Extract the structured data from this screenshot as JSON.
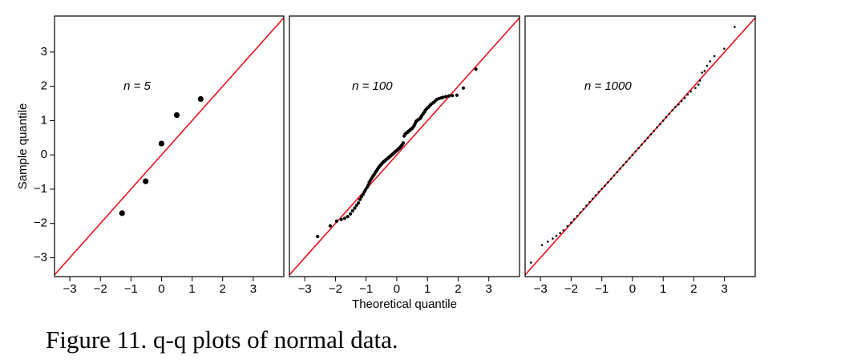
{
  "caption": "Figure 11. q-q plots of normal data.",
  "chart_data": [
    {
      "type": "scatter",
      "annotation": "n = 5",
      "ylabel": "Sample quantile",
      "xlim": [
        -3.5,
        4
      ],
      "ylim": [
        -3.55,
        4.05
      ],
      "xticks": [
        {
          "value": -3,
          "label": "−3"
        },
        {
          "value": -2,
          "label": "−2"
        },
        {
          "value": -1,
          "label": "−1"
        },
        0,
        1,
        2,
        3
      ],
      "yticks": [
        {
          "value": -3,
          "label": "−3"
        },
        {
          "value": -2,
          "label": "−2"
        },
        {
          "value": -1,
          "label": "−1"
        },
        0,
        1,
        2,
        3
      ],
      "color": "#000000",
      "reference_line": {
        "slope": 1,
        "intercept": 0,
        "color": "#e8141c"
      },
      "x": [
        -1.29,
        -0.52,
        0,
        0.5,
        1.28
      ],
      "y": [
        -1.7,
        -0.77,
        0.33,
        1.16,
        1.63
      ]
    },
    {
      "type": "scatter",
      "annotation": "n = 100",
      "xlabel": "Theoretical quantile",
      "xlim": [
        -3.5,
        4
      ],
      "ylim": [
        -3.55,
        4.05
      ],
      "xticks": [
        {
          "value": -3,
          "label": "−3"
        },
        {
          "value": -2,
          "label": "−2"
        },
        {
          "value": -1,
          "label": "−1"
        },
        0,
        1,
        2,
        3
      ],
      "color": "#000000",
      "reference_line": {
        "slope": 1,
        "intercept": 0,
        "color": "#e8141c"
      },
      "x": [
        -2.58,
        -2.17,
        -1.96,
        -1.81,
        -1.7,
        -1.6,
        -1.51,
        -1.44,
        -1.37,
        -1.31,
        -1.25,
        -1.2,
        -1.15,
        -1.1,
        -1.06,
        -1.02,
        -0.97,
        -0.93,
        -0.9,
        -0.86,
        -0.82,
        -0.79,
        -0.76,
        -0.72,
        -0.69,
        -0.66,
        -0.63,
        -0.6,
        -0.57,
        -0.54,
        -0.51,
        -0.48,
        -0.45,
        -0.43,
        -0.4,
        -0.37,
        -0.35,
        -0.32,
        -0.29,
        -0.27,
        -0.24,
        -0.21,
        -0.19,
        -0.16,
        -0.14,
        -0.11,
        -0.09,
        -0.06,
        -0.04,
        -0.01,
        0.01,
        0.04,
        0.06,
        0.09,
        0.11,
        0.14,
        0.16,
        0.19,
        0.21,
        0.24,
        0.27,
        0.29,
        0.32,
        0.35,
        0.37,
        0.4,
        0.43,
        0.45,
        0.48,
        0.51,
        0.54,
        0.57,
        0.6,
        0.63,
        0.66,
        0.69,
        0.72,
        0.76,
        0.79,
        0.82,
        0.86,
        0.9,
        0.93,
        0.97,
        1.02,
        1.06,
        1.1,
        1.15,
        1.2,
        1.25,
        1.31,
        1.37,
        1.44,
        1.51,
        1.6,
        1.7,
        1.81,
        1.96,
        2.17,
        2.58
      ],
      "y": [
        -2.38,
        -2.07,
        -1.93,
        -1.88,
        -1.85,
        -1.8,
        -1.72,
        -1.63,
        -1.55,
        -1.47,
        -1.4,
        -1.3,
        -1.22,
        -1.15,
        -1.08,
        -1.02,
        -0.95,
        -0.88,
        -0.8,
        -0.74,
        -0.69,
        -0.64,
        -0.6,
        -0.55,
        -0.5,
        -0.46,
        -0.42,
        -0.38,
        -0.34,
        -0.31,
        -0.28,
        -0.25,
        -0.22,
        -0.2,
        -0.18,
        -0.16,
        -0.14,
        -0.12,
        -0.1,
        -0.08,
        -0.06,
        -0.04,
        -0.02,
        0,
        0.02,
        0.04,
        0.06,
        0.08,
        0.1,
        0.12,
        0.14,
        0.16,
        0.18,
        0.2,
        0.22,
        0.25,
        0.28,
        0.31,
        0.35,
        0.55,
        0.6,
        0.62,
        0.64,
        0.66,
        0.68,
        0.7,
        0.72,
        0.74,
        0.76,
        0.78,
        0.82,
        0.86,
        0.92,
        0.98,
        1,
        1.02,
        1.04,
        1.06,
        1.1,
        1.15,
        1.2,
        1.25,
        1.3,
        1.34,
        1.38,
        1.42,
        1.46,
        1.5,
        1.53,
        1.57,
        1.62,
        1.64,
        1.66,
        1.68,
        1.7,
        1.72,
        1.73,
        1.74,
        1.95,
        2.5
      ]
    },
    {
      "type": "scatter",
      "annotation": "n = 1000",
      "xlim": [
        -3.5,
        4
      ],
      "ylim": [
        -3.55,
        4.05
      ],
      "xticks": [
        {
          "value": -3,
          "label": "−3"
        },
        {
          "value": -2,
          "label": "−2"
        },
        {
          "value": -1,
          "label": "−1"
        },
        0,
        1,
        2,
        3
      ],
      "color": "#000000",
      "reference_line": {
        "slope": 1,
        "intercept": 0,
        "color": "#e8141c"
      },
      "x": [
        -3.31,
        -2.95,
        -2.76,
        -2.6,
        -2.48,
        -2.36,
        -2.25,
        -2.12,
        -2.0,
        -1.9,
        -1.8,
        -1.7,
        -1.6,
        -1.5,
        -1.4,
        -1.3,
        -1.2,
        -1.1,
        -1.0,
        -0.9,
        -0.8,
        -0.7,
        -0.6,
        -0.5,
        -0.4,
        -0.3,
        -0.2,
        -0.1,
        0,
        0.1,
        0.2,
        0.3,
        0.4,
        0.5,
        0.6,
        0.7,
        0.8,
        0.9,
        1.0,
        1.1,
        1.2,
        1.3,
        1.4,
        1.5,
        1.6,
        1.7,
        1.8,
        1.9,
        2.05,
        2.15,
        2.2,
        2.27,
        2.35,
        2.43,
        2.53,
        2.67,
        2.99,
        3.33
      ],
      "y": [
        -3.14,
        -2.63,
        -2.53,
        -2.44,
        -2.36,
        -2.28,
        -2.2,
        -2.08,
        -1.98,
        -1.88,
        -1.78,
        -1.68,
        -1.58,
        -1.48,
        -1.38,
        -1.28,
        -1.18,
        -1.08,
        -0.99,
        -0.9,
        -0.8,
        -0.7,
        -0.6,
        -0.5,
        -0.4,
        -0.3,
        -0.2,
        -0.1,
        0,
        0.1,
        0.2,
        0.3,
        0.4,
        0.5,
        0.6,
        0.7,
        0.8,
        0.9,
        1.0,
        1.1,
        1.2,
        1.3,
        1.4,
        1.47,
        1.57,
        1.66,
        1.76,
        1.85,
        1.95,
        2.05,
        2.17,
        2.4,
        2.45,
        2.6,
        2.73,
        2.88,
        3.1,
        3.73
      ]
    }
  ]
}
